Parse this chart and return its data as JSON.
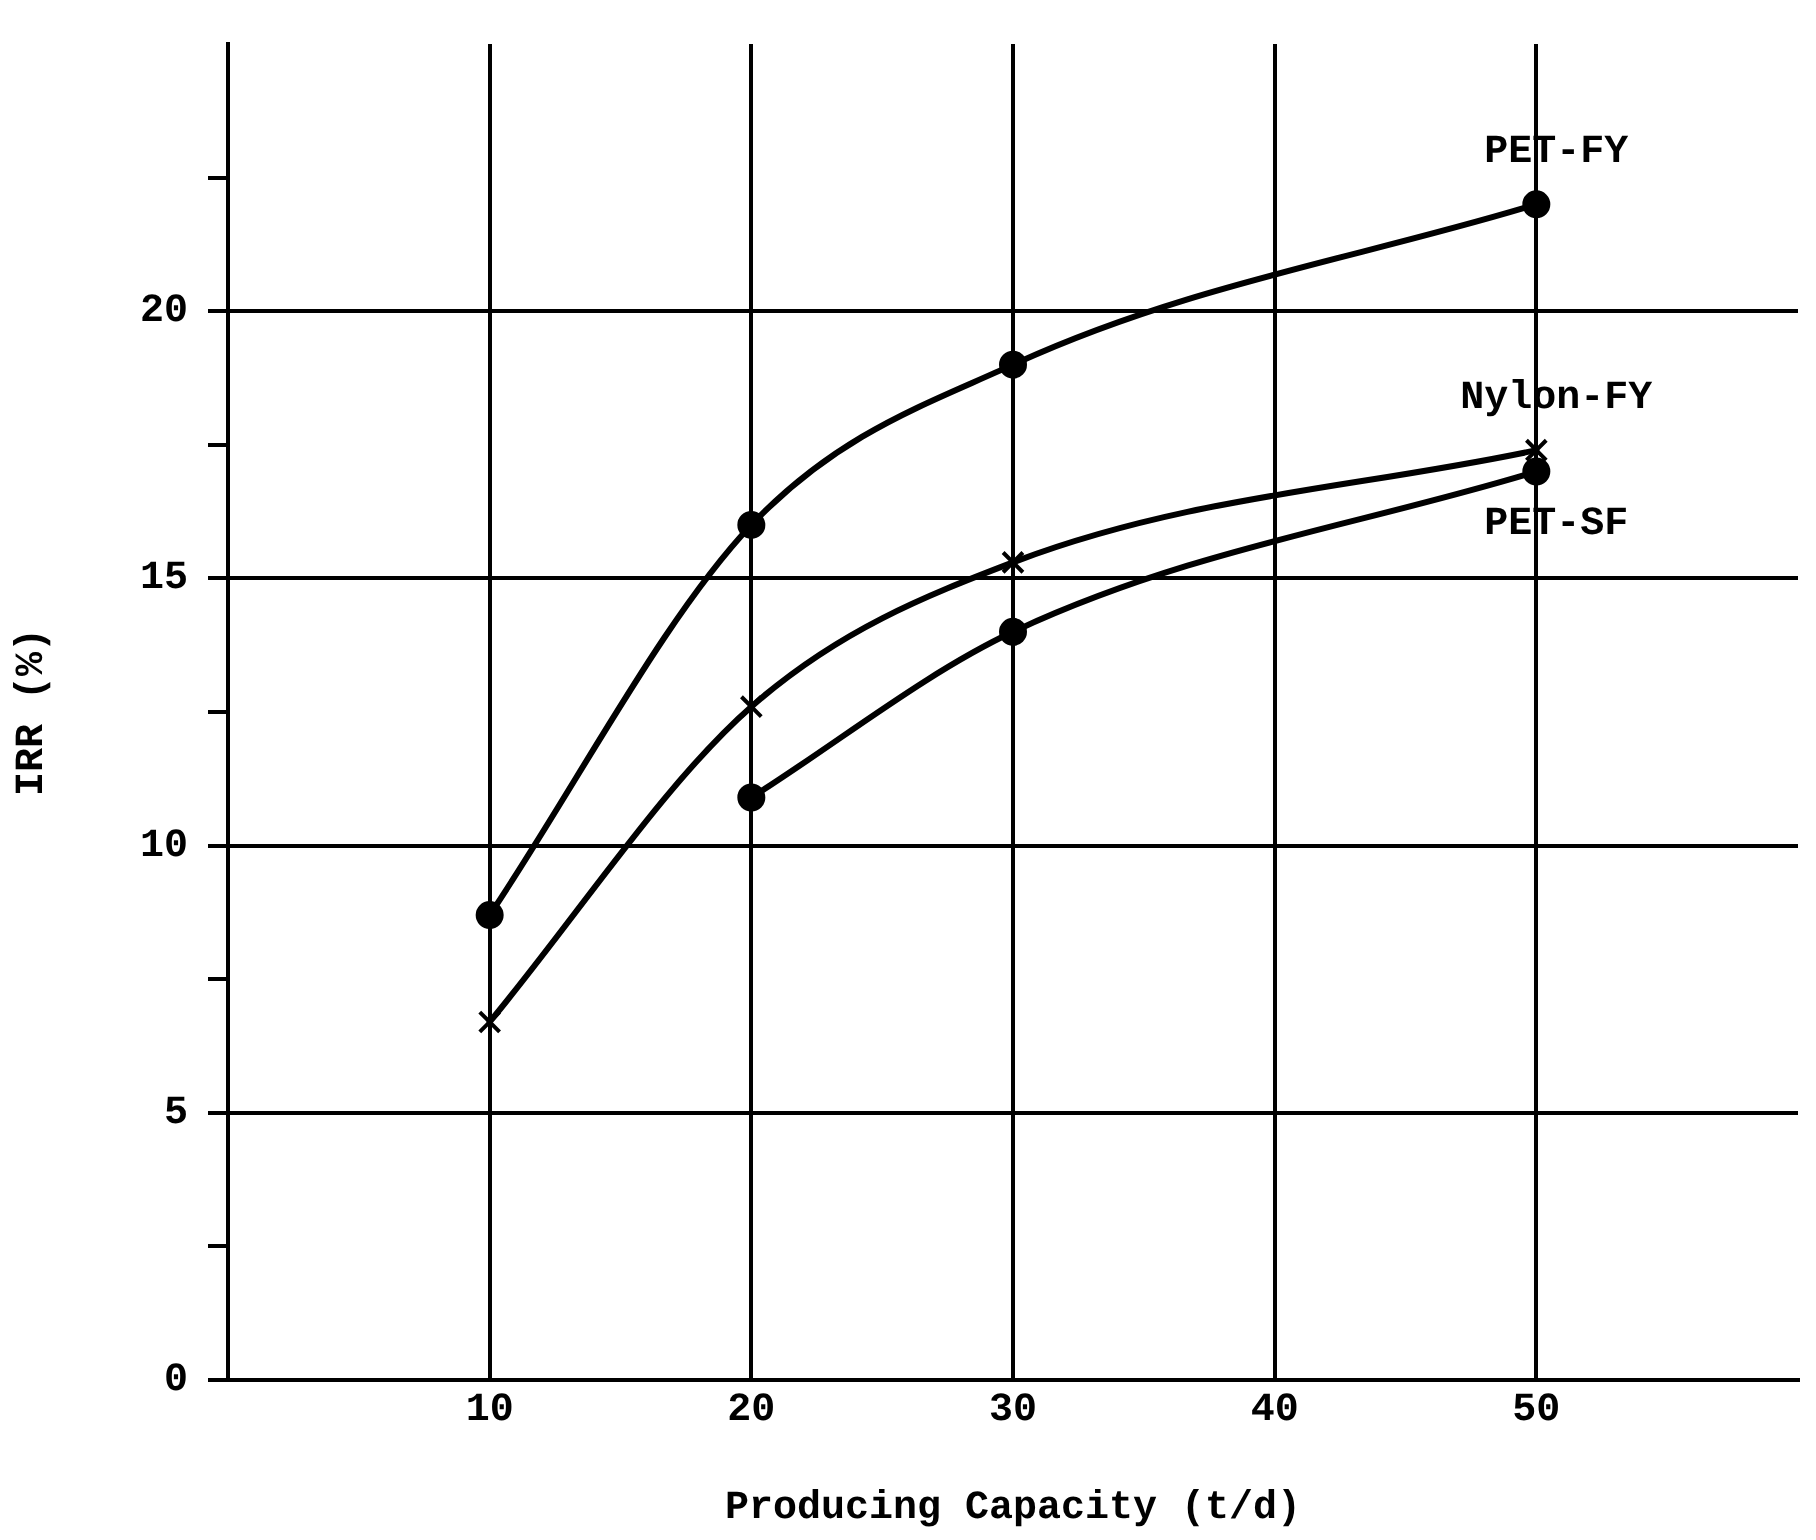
{
  "chart_data": {
    "type": "line",
    "xlabel": "Producing Capacity (t/d)",
    "ylabel": "IRR (%)",
    "series": [
      {
        "name": "PET-FY",
        "color": "#000000",
        "marker": "circle",
        "x": [
          10,
          20,
          30,
          50
        ],
        "values": [
          8.7,
          16.0,
          19.0,
          22.0
        ]
      },
      {
        "name": "Nylon-FY",
        "color": "#000000",
        "marker": "cross",
        "x": [
          10,
          20,
          30,
          50
        ],
        "values": [
          6.7,
          12.6,
          15.3,
          17.4
        ]
      },
      {
        "name": "PET-SF",
        "color": "#000000",
        "marker": "circle",
        "x": [
          20,
          30,
          50
        ],
        "values": [
          10.9,
          14.0,
          17.0
        ]
      }
    ],
    "xlim": [
      0,
      60
    ],
    "xticks": [
      10,
      20,
      30,
      40,
      50
    ],
    "ylim": [
      0,
      25
    ],
    "yticks": [
      0,
      {
        "value": 2.5,
        "label": null
      },
      5,
      {
        "value": 7.5,
        "label": null
      },
      10,
      {
        "value": 12.5,
        "label": null
      },
      15,
      {
        "value": 17.5,
        "label": null
      },
      20,
      {
        "value": 22.5,
        "label": null
      }
    ],
    "grid": true,
    "legend": false
  }
}
